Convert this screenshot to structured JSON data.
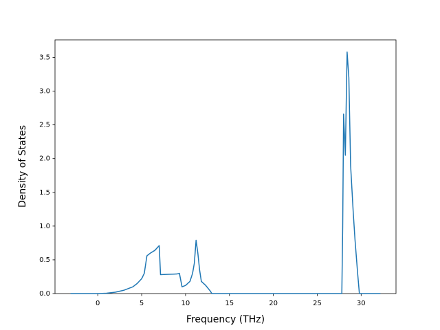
{
  "chart_data": {
    "type": "line",
    "x_label": "Frequency (THz)",
    "y_label": "Density of States",
    "x": [
      -3.1,
      0,
      1,
      2,
      3,
      4,
      4.5,
      5,
      5.3,
      5.6,
      6,
      6.5,
      7,
      7.15,
      8,
      9,
      9.3,
      9.6,
      10,
      10.5,
      10.8,
      11,
      11.2,
      11.4,
      11.6,
      11.8,
      12.3,
      12.8,
      13,
      27.8,
      27.9,
      28.0,
      28.2,
      28.4,
      28.6,
      28.8,
      29.1,
      29.3,
      29.6,
      29.8,
      32.2
    ],
    "values": [
      0,
      0,
      0.005,
      0.02,
      0.05,
      0.1,
      0.15,
      0.22,
      0.3,
      0.56,
      0.6,
      0.64,
      0.71,
      0.28,
      0.285,
      0.29,
      0.3,
      0.1,
      0.12,
      0.18,
      0.3,
      0.45,
      0.79,
      0.6,
      0.35,
      0.18,
      0.12,
      0.04,
      0,
      0,
      1.0,
      2.66,
      2.05,
      3.58,
      3.2,
      1.9,
      1.2,
      0.8,
      0.3,
      0,
      0
    ],
    "color": "#1f77b4",
    "xlim": [
      -4.87,
      33.97
    ],
    "ylim": [
      0,
      3.76
    ],
    "xticks": [
      0,
      5,
      10,
      15,
      20,
      25,
      30
    ],
    "yticks": [
      {
        "value": 0,
        "label": "0.0"
      },
      {
        "value": 0.5,
        "label": "0.5"
      },
      {
        "value": 1,
        "label": "1.0"
      },
      {
        "value": 1.5,
        "label": "1.5"
      },
      {
        "value": 2,
        "label": "2.0"
      },
      {
        "value": 2.5,
        "label": "2.5"
      },
      {
        "value": 3,
        "label": "3.0"
      },
      {
        "value": 3.5,
        "label": "3.5"
      }
    ],
    "grid": false
  }
}
